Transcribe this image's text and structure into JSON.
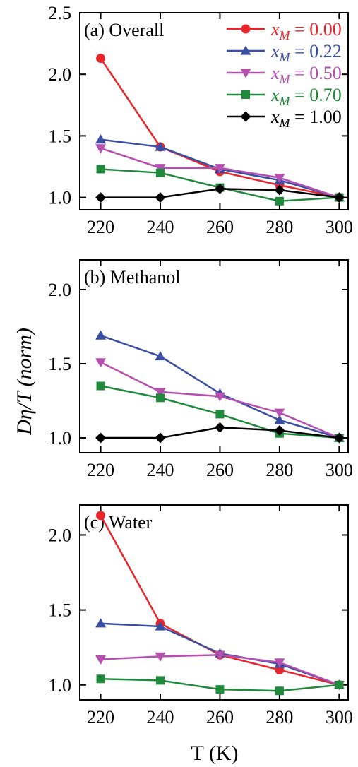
{
  "figure": {
    "ylabel": "Dη/T (norm)",
    "xlabel": "T (K)"
  },
  "legend": {
    "entries": [
      {
        "series": "xM=0.00",
        "prefix": "x",
        "sub": "M",
        "suffix": " = 0.00",
        "color": "#e8252a",
        "marker": "circle"
      },
      {
        "series": "xM=0.22",
        "prefix": "x",
        "sub": "M",
        "suffix": " = 0.22",
        "color": "#3a4ea3",
        "marker": "triangle-up"
      },
      {
        "series": "xM=0.50",
        "prefix": "x",
        "sub": "M",
        "suffix": " = 0.50",
        "color": "#b550b0",
        "marker": "triangle-down"
      },
      {
        "series": "xM=0.70",
        "prefix": "x",
        "sub": "M",
        "suffix": " = 0.70",
        "color": "#1f8a3b",
        "marker": "square"
      },
      {
        "series": "xM=1.00",
        "prefix": "x",
        "sub": "M",
        "suffix": " = 1.00",
        "color": "#000000",
        "marker": "diamond"
      }
    ]
  },
  "chart_data": [
    {
      "type": "line",
      "title": "(a) Overall",
      "x": [
        220,
        240,
        260,
        280,
        300
      ],
      "xlim": [
        213,
        303
      ],
      "ylim": [
        0.9,
        2.5
      ],
      "yticks": [
        1.0,
        1.5,
        2.0,
        2.5
      ],
      "xticks": [
        220,
        240,
        260,
        280,
        300
      ],
      "series": [
        {
          "name": "xM=0.00",
          "values": [
            2.13,
            1.41,
            1.21,
            1.1,
            1.0
          ]
        },
        {
          "name": "xM=0.22",
          "values": [
            1.47,
            1.41,
            1.23,
            1.14,
            1.0
          ]
        },
        {
          "name": "xM=0.50",
          "values": [
            1.4,
            1.24,
            1.24,
            1.16,
            1.0
          ]
        },
        {
          "name": "xM=0.70",
          "values": [
            1.23,
            1.2,
            1.08,
            0.97,
            1.0
          ]
        },
        {
          "name": "xM=1.00",
          "values": [
            1.0,
            1.0,
            1.07,
            1.06,
            1.0
          ]
        }
      ]
    },
    {
      "type": "line",
      "title": "(b) Methanol",
      "x": [
        220,
        240,
        260,
        280,
        300
      ],
      "xlim": [
        213,
        303
      ],
      "ylim": [
        0.9,
        2.2
      ],
      "yticks": [
        1.0,
        1.5,
        2.0
      ],
      "xticks": [
        220,
        240,
        260,
        280,
        300
      ],
      "series": [
        {
          "name": "xM=0.22",
          "values": [
            1.69,
            1.55,
            1.3,
            1.12,
            1.0
          ]
        },
        {
          "name": "xM=0.50",
          "values": [
            1.51,
            1.31,
            1.28,
            1.17,
            1.0
          ]
        },
        {
          "name": "xM=0.70",
          "values": [
            1.35,
            1.27,
            1.16,
            1.03,
            1.0
          ]
        },
        {
          "name": "xM=1.00",
          "values": [
            1.0,
            1.0,
            1.07,
            1.05,
            1.0
          ]
        }
      ]
    },
    {
      "type": "line",
      "title": "(c) Water",
      "x": [
        220,
        240,
        260,
        280,
        300
      ],
      "xlim": [
        213,
        303
      ],
      "ylim": [
        0.9,
        2.2
      ],
      "yticks": [
        1.0,
        1.5,
        2.0
      ],
      "xticks": [
        220,
        240,
        260,
        280,
        300
      ],
      "series": [
        {
          "name": "xM=0.00",
          "values": [
            2.13,
            1.41,
            1.2,
            1.1,
            1.0
          ]
        },
        {
          "name": "xM=0.22",
          "values": [
            1.41,
            1.39,
            1.21,
            1.14,
            1.0
          ]
        },
        {
          "name": "xM=0.50",
          "values": [
            1.17,
            1.19,
            1.2,
            1.15,
            1.0
          ]
        },
        {
          "name": "xM=0.70",
          "values": [
            1.04,
            1.03,
            0.97,
            0.96,
            1.0
          ]
        }
      ]
    }
  ]
}
